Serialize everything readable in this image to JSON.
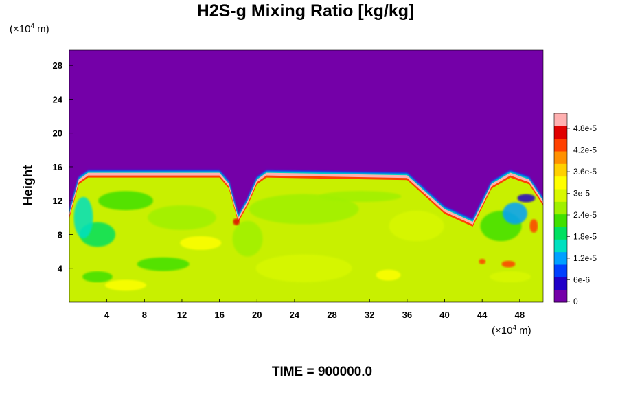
{
  "chart_data": {
    "type": "heatmap",
    "title": "H2S-g Mixing Ratio [kg/kg]",
    "ylabel": "Height",
    "xlabel": "",
    "x_unit": {
      "prefix": "(×10",
      "exp": "4",
      "suffix": " m)"
    },
    "y_unit": {
      "prefix": "(×10",
      "exp": "4",
      "suffix": " m)"
    },
    "xlim": [
      0,
      50.5
    ],
    "ylim": [
      0,
      29.8
    ],
    "x_ticks": [
      4,
      8,
      12,
      16,
      20,
      24,
      28,
      32,
      36,
      40,
      44,
      48
    ],
    "y_ticks": [
      4,
      8,
      12,
      16,
      20,
      24,
      28
    ],
    "colorbar": {
      "min": 0,
      "max": 5.2e-05,
      "labels": [
        "4.8e-5",
        "4.2e-5",
        "3.6e-5",
        "3e-5",
        "2.4e-5",
        "1.8e-5",
        "1.2e-5",
        "6e-6",
        "0"
      ],
      "colors": [
        "#7400a8",
        "#2000c8",
        "#0040ff",
        "#00a0ff",
        "#00e0c0",
        "#00e060",
        "#40e000",
        "#a0f000",
        "#d8f800",
        "#ffff00",
        "#ffd000",
        "#ff9000",
        "#ff4000",
        "#e00000",
        "#ffb0b0"
      ]
    },
    "field_description_points": {
      "top_boundary_x": [
        0,
        1,
        2,
        16,
        17,
        18,
        19,
        20,
        21,
        36,
        40,
        43,
        45,
        47,
        49,
        50.5
      ],
      "top_boundary_y": [
        10.5,
        14.5,
        15.3,
        15.3,
        14,
        10,
        12,
        14.5,
        15.3,
        15,
        11,
        9.5,
        14,
        15.3,
        14.5,
        12
      ]
    }
  },
  "footer": {
    "time_label": "TIME = 900000.0"
  }
}
